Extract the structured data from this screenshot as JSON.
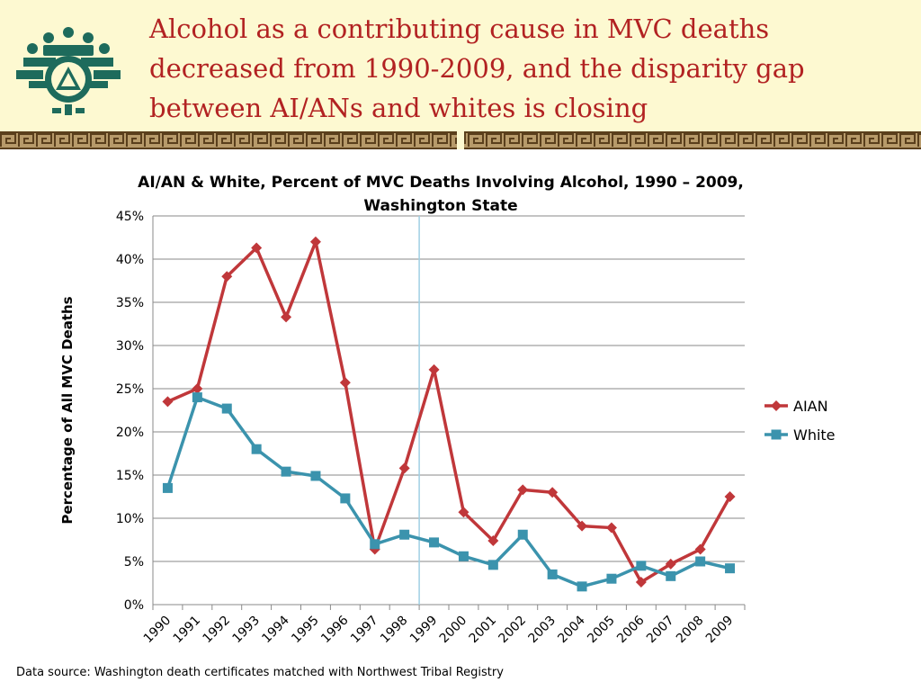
{
  "slide": {
    "title": "Alcohol as a contributing cause in MVC deaths decreased from 1990-2009, and the disparity gap between AI/ANs and whites is closing",
    "source_note": "Data source: Washington death certificates matched with Northwest Tribal Registry"
  },
  "logo": {
    "icon": "tribal-emblem-icon",
    "color": "#1e6b5c"
  },
  "colors": {
    "header_bg": "#fdf9d1",
    "title": "#b22222",
    "aian": "#c0373a",
    "white": "#3b93ad",
    "gridline": "#8a8a8a",
    "reference_line": "#9fd0e4",
    "border_band": "#7a5b2e"
  },
  "chart_data": {
    "type": "line",
    "title": "AI/AN & White, Percent of MVC Deaths Involving Alcohol, 1990 – 2009, Washington State",
    "ylabel": "Percentage of All MVC Deaths",
    "xlabel": "",
    "categories": [
      "1990",
      "1991",
      "1992",
      "1993",
      "1994",
      "1995",
      "1996",
      "1997",
      "1998",
      "1999",
      "2000",
      "2001",
      "2002",
      "2003",
      "2004",
      "2005",
      "2006",
      "2007",
      "2008",
      "2009"
    ],
    "yticks": [
      "0%",
      "5%",
      "10%",
      "15%",
      "20%",
      "25%",
      "30%",
      "35%",
      "40%",
      "45%"
    ],
    "ylim": [
      0,
      45
    ],
    "grid": true,
    "legend_position": "right",
    "reference_line_between": [
      "1998",
      "1999"
    ],
    "series": [
      {
        "name": "AIAN",
        "marker": "diamond",
        "values": [
          23.5,
          25.0,
          38.0,
          41.3,
          33.3,
          42.0,
          25.7,
          6.4,
          15.8,
          27.2,
          10.7,
          7.4,
          13.3,
          13.0,
          9.1,
          8.9,
          2.6,
          4.7,
          6.4,
          12.5
        ]
      },
      {
        "name": "White",
        "marker": "square",
        "values": [
          13.5,
          24.0,
          22.7,
          18.0,
          15.4,
          14.9,
          12.3,
          7.0,
          8.1,
          7.2,
          5.6,
          4.6,
          8.1,
          3.5,
          2.1,
          3.0,
          4.5,
          3.3,
          5.0,
          4.2
        ]
      }
    ]
  }
}
